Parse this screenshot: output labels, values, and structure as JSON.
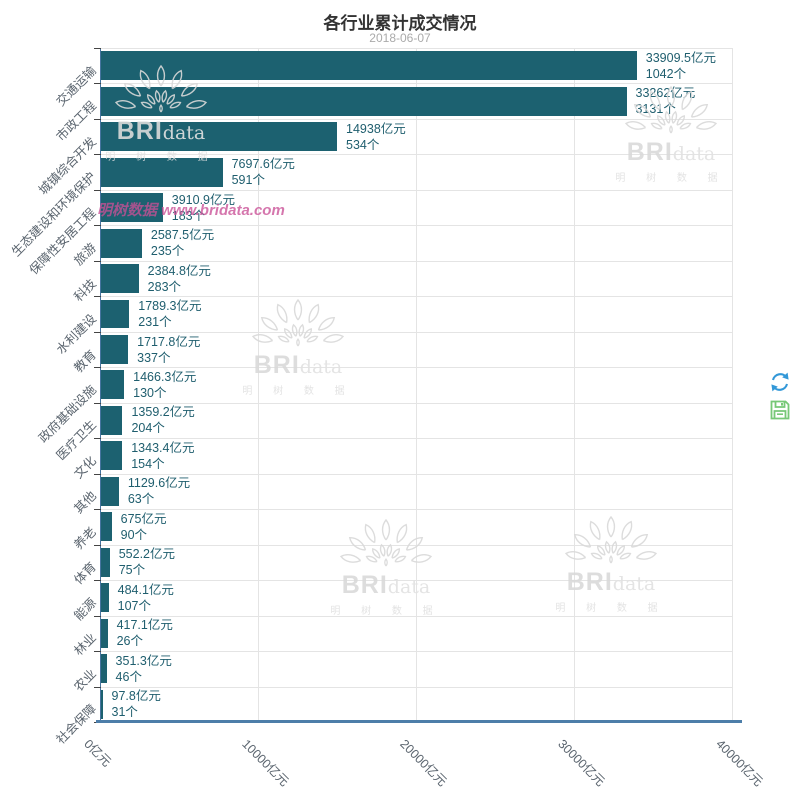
{
  "header": {
    "title": "各行业累计成交情况",
    "subtitle": "2018-06-07"
  },
  "chart_data": {
    "type": "bar",
    "orientation": "horizontal",
    "title": "各行业累计成交情况",
    "subtitle": "2018-06-07",
    "xlabel": "亿元",
    "xlim": [
      0,
      40000
    ],
    "grid": true,
    "bar_color": "#1c6170",
    "x_ticks": [
      {
        "value": 0,
        "label": "0亿元"
      },
      {
        "value": 10000,
        "label": "10000亿元"
      },
      {
        "value": 20000,
        "label": "20000亿元"
      },
      {
        "value": 30000,
        "label": "30000亿元"
      },
      {
        "value": 40000,
        "label": "40000亿元"
      }
    ],
    "rows": [
      {
        "category": "交通运输",
        "amount": 33909.5,
        "amount_label": "33909.5亿元",
        "count": 1042,
        "count_label": "1042个"
      },
      {
        "category": "市政工程",
        "amount": 33262,
        "amount_label": "33262亿元",
        "count": 3131,
        "count_label": "3131个"
      },
      {
        "category": "城镇综合开发",
        "amount": 14938,
        "amount_label": "14938亿元",
        "count": 534,
        "count_label": "534个"
      },
      {
        "category": "生态建设和环境保护",
        "amount": 7697.6,
        "amount_label": "7697.6亿元",
        "count": 591,
        "count_label": "591个"
      },
      {
        "category": "保障性安居工程",
        "amount": 3910.9,
        "amount_label": "3910.9亿元",
        "count": 183,
        "count_label": "183个"
      },
      {
        "category": "旅游",
        "amount": 2587.5,
        "amount_label": "2587.5亿元",
        "count": 235,
        "count_label": "235个"
      },
      {
        "category": "科技",
        "amount": 2384.8,
        "amount_label": "2384.8亿元",
        "count": 283,
        "count_label": "283个"
      },
      {
        "category": "水利建设",
        "amount": 1789.3,
        "amount_label": "1789.3亿元",
        "count": 231,
        "count_label": "231个"
      },
      {
        "category": "教育",
        "amount": 1717.8,
        "amount_label": "1717.8亿元",
        "count": 337,
        "count_label": "337个"
      },
      {
        "category": "政府基础设施",
        "amount": 1466.3,
        "amount_label": "1466.3亿元",
        "count": 130,
        "count_label": "130个"
      },
      {
        "category": "医疗卫生",
        "amount": 1359.2,
        "amount_label": "1359.2亿元",
        "count": 204,
        "count_label": "204个"
      },
      {
        "category": "文化",
        "amount": 1343.4,
        "amount_label": "1343.4亿元",
        "count": 154,
        "count_label": "154个"
      },
      {
        "category": "其他",
        "amount": 1129.6,
        "amount_label": "1129.6亿元",
        "count": 63,
        "count_label": "63个"
      },
      {
        "category": "养老",
        "amount": 675,
        "amount_label": "675亿元",
        "count": 90,
        "count_label": "90个"
      },
      {
        "category": "体育",
        "amount": 552.2,
        "amount_label": "552.2亿元",
        "count": 75,
        "count_label": "75个"
      },
      {
        "category": "能源",
        "amount": 484.1,
        "amount_label": "484.1亿元",
        "count": 107,
        "count_label": "107个"
      },
      {
        "category": "林业",
        "amount": 417.1,
        "amount_label": "417.1亿元",
        "count": 26,
        "count_label": "26个"
      },
      {
        "category": "农业",
        "amount": 351.3,
        "amount_label": "351.3亿元",
        "count": 46,
        "count_label": "46个"
      },
      {
        "category": "社会保障",
        "amount": 97.8,
        "amount_label": "97.8亿元",
        "count": 31,
        "count_label": "31个"
      }
    ]
  },
  "toolbox": {
    "restore_icon_color": "#3398d8",
    "save_icon_color": "#77c877"
  },
  "watermark": {
    "pink_text": "明树数据 www.bridata.com",
    "brand_bold": "BRI",
    "brand_light": "data",
    "brand_cn": "明 树 数 据"
  }
}
